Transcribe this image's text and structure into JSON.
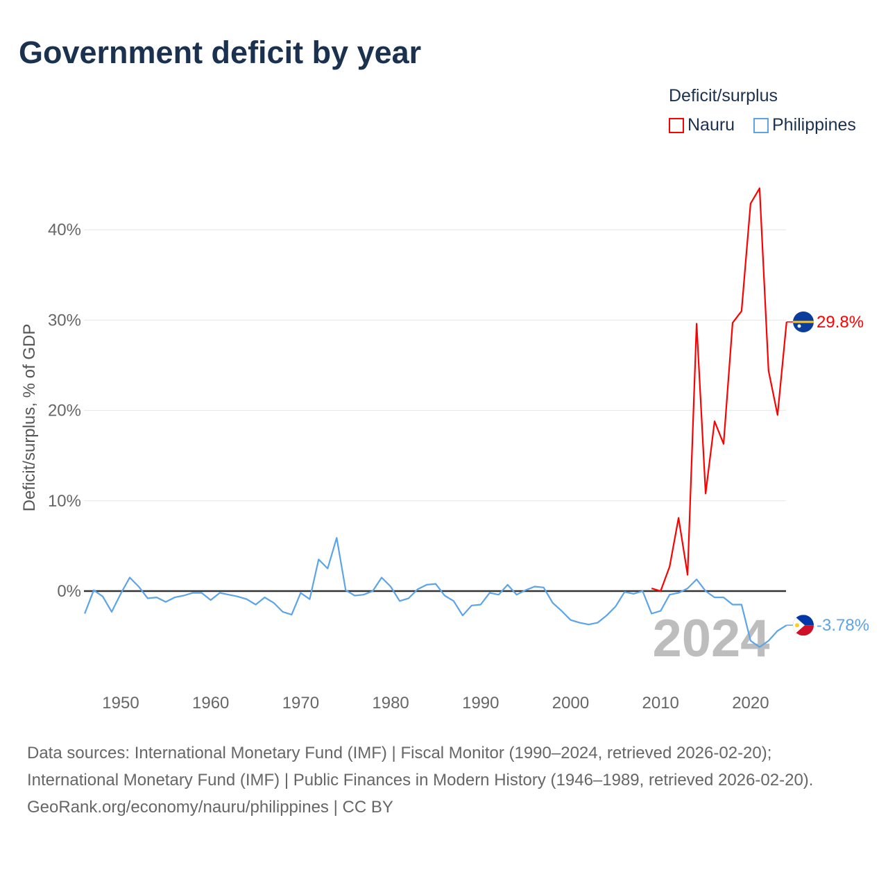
{
  "title": "Government deficit by year",
  "legend": {
    "title": "Deficit/surplus",
    "items": [
      {
        "name": "Nauru",
        "color": "#ff0000"
      },
      {
        "name": "Philippines",
        "color": "#5ba4ea"
      }
    ]
  },
  "footer": {
    "sources": "Data sources: International Monetary Fund (IMF) | Fiscal Monitor (1990–2024, retrieved 2026-02-20); International Monetary Fund (IMF) | Public Finances in Modern History (1946–1989, retrieved 2026-02-20).",
    "credit": "GeoRank.org/economy/nauru/philippines | CC BY"
  },
  "chart_data": {
    "type": "line",
    "title": "Government deficit by year",
    "xlabel": "",
    "ylabel": "Deficit/surplus, % of GDP",
    "xlim": [
      1946,
      2024
    ],
    "ylim": [
      -7,
      45
    ],
    "yticks": [
      0,
      10,
      20,
      30,
      40
    ],
    "ytick_labels": [
      "0%",
      "10%",
      "20%",
      "30%",
      "40%"
    ],
    "xticks": [
      1950,
      1960,
      1970,
      1980,
      1990,
      2000,
      2010,
      2020
    ],
    "xtick_labels": [
      "1950",
      "1960",
      "1970",
      "1980",
      "1990",
      "2000",
      "2010",
      "2020"
    ],
    "year_watermark": "2024",
    "legend_position": "top-right",
    "series": [
      {
        "name": "Nauru",
        "color": "#ff0000",
        "end_label": "29.8%",
        "flag": "nauru-flag",
        "x": [
          2009,
          2010,
          2011,
          2012,
          2013,
          2014,
          2015,
          2016,
          2017,
          2018,
          2019,
          2020,
          2021,
          2022,
          2023,
          2024
        ],
        "values": [
          0.3,
          0.0,
          2.7,
          8.1,
          1.8,
          29.6,
          10.8,
          18.8,
          16.3,
          29.7,
          31.0,
          42.9,
          44.6,
          24.4,
          19.5,
          29.8
        ]
      },
      {
        "name": "Philippines",
        "color": "#5ba4ea",
        "end_label": "-3.78%",
        "flag": "philippines-flag",
        "x_start": 1946,
        "values": [
          -2.5,
          0.1,
          -0.6,
          -2.3,
          -0.3,
          1.5,
          0.5,
          -0.8,
          -0.7,
          -1.2,
          -0.7,
          -0.5,
          -0.2,
          -0.2,
          -1.0,
          -0.2,
          -0.4,
          -0.6,
          -0.9,
          -1.5,
          -0.7,
          -1.3,
          -2.3,
          -2.6,
          -0.2,
          -0.9,
          3.5,
          2.5,
          5.9,
          0.1,
          -0.5,
          -0.4,
          0.0,
          1.5,
          0.5,
          -1.1,
          -0.8,
          0.2,
          0.7,
          0.8,
          -0.5,
          -1.1,
          -2.7,
          -1.6,
          -1.5,
          -0.2,
          -0.4,
          0.7,
          -0.4,
          0.1,
          0.5,
          0.4,
          -1.3,
          -2.2,
          -3.2,
          -3.5,
          -3.7,
          -3.5,
          -2.7,
          -1.7,
          -0.1,
          -0.3,
          0.0,
          -2.5,
          -2.2,
          -0.4,
          -0.2,
          0.3,
          1.3,
          0.0,
          -0.7,
          -0.7,
          -1.5,
          -1.5,
          -5.5,
          -6.2,
          -5.5,
          -4.4,
          -3.78
        ]
      }
    ]
  }
}
